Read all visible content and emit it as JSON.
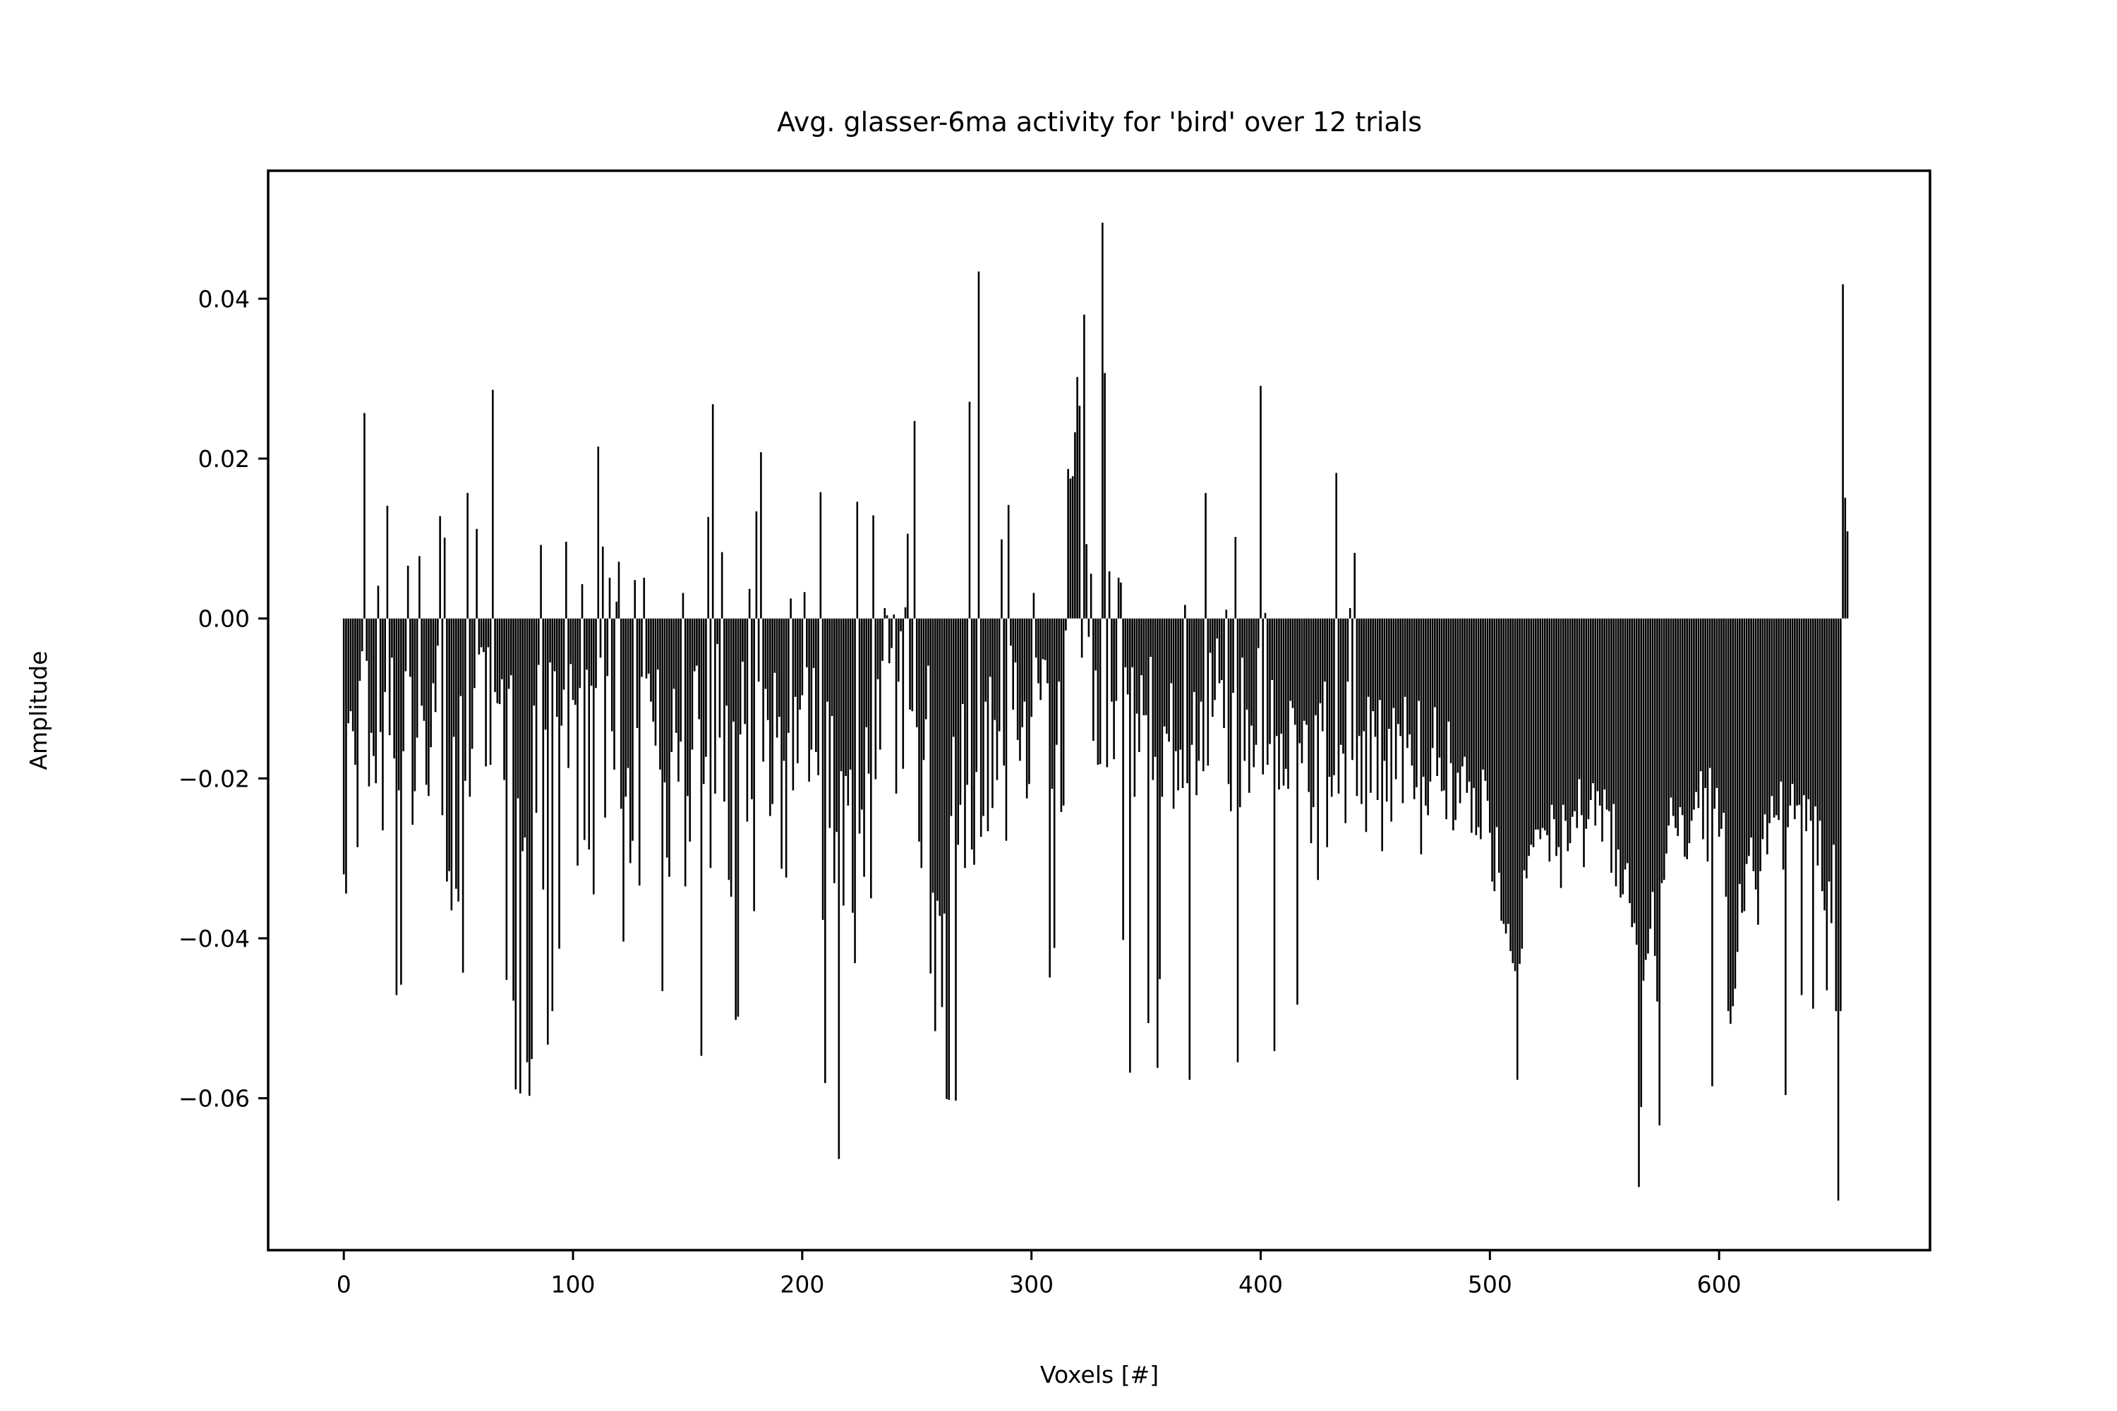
{
  "chart_data": {
    "type": "bar",
    "title": "Avg. glasser-6ma activity for 'bird' over 12 trials",
    "xlabel": "Voxels [#]",
    "ylabel": "Amplitude",
    "xlim": [
      -33,
      692
    ],
    "ylim": [
      -0.079,
      0.056
    ],
    "x_ticks": [
      0,
      100,
      200,
      300,
      400,
      500,
      600
    ],
    "x_tick_labels": [
      "0",
      "100",
      "200",
      "300",
      "400",
      "500",
      "600"
    ],
    "y_ticks": [
      -0.06,
      -0.04,
      -0.02,
      0.0,
      0.02,
      0.04
    ],
    "y_tick_labels": [
      "−0.06",
      "−0.04",
      "−0.02",
      "0.00",
      "0.02",
      "0.04"
    ],
    "grid": false,
    "bar_color": "#000000",
    "n_bars": 664,
    "x_start": 0,
    "values": [
      -0.032,
      -0.0344,
      -0.0131,
      -0.0116,
      -0.0141,
      -0.0183,
      -0.0286,
      -0.0078,
      -0.0041,
      0.0257,
      -0.0053,
      -0.021,
      -0.0143,
      -0.0172,
      -0.0206,
      0.0041,
      -0.0142,
      -0.0265,
      -0.0092,
      0.0141,
      -0.0146,
      -0.0049,
      -0.0175,
      -0.0471,
      -0.0215,
      -0.0458,
      -0.0166,
      -0.0066,
      0.0066,
      -0.0073,
      -0.0258,
      -0.0216,
      -0.0149,
      0.0078,
      -0.0109,
      -0.0128,
      -0.0208,
      -0.0222,
      -0.0161,
      -0.0081,
      -0.0117,
      -0.0034,
      0.0128,
      -0.0246,
      0.0101,
      -0.0329,
      -0.0316,
      -0.0365,
      -0.0148,
      -0.0338,
      -0.0354,
      -0.0097,
      -0.0443,
      -0.0203,
      0.0157,
      -0.0223,
      -0.0163,
      -0.0087,
      0.0112,
      -0.0045,
      -0.0036,
      -0.0042,
      -0.0185,
      -0.0036,
      -0.0183,
      0.0286,
      -0.0092,
      -0.0106,
      -0.0107,
      -0.0076,
      -0.0202,
      -0.0452,
      -0.0088,
      -0.0071,
      -0.0478,
      -0.0589,
      -0.0225,
      -0.0594,
      -0.0291,
      -0.0274,
      -0.0555,
      -0.0597,
      -0.0551,
      -0.0109,
      -0.0243,
      -0.0058,
      0.0092,
      -0.0339,
      -0.0139,
      -0.0533,
      -0.0055,
      -0.0491,
      -0.0066,
      -0.0123,
      -0.0413,
      -0.0134,
      -0.0089,
      0.0096,
      -0.0187,
      -0.0057,
      -0.0102,
      -0.0108,
      -0.0309,
      -0.0087,
      0.0043,
      -0.0277,
      -0.0064,
      -0.0289,
      -0.0084,
      -0.0345,
      -0.0087,
      0.0215,
      -0.0049,
      0.009,
      -0.0249,
      -0.0072,
      0.0051,
      -0.0141,
      -0.0189,
      0.0021,
      0.0071,
      -0.0238,
      -0.0404,
      -0.0223,
      -0.0187,
      -0.0306,
      -0.0278,
      0.0048,
      -0.0137,
      -0.0334,
      -0.0073,
      0.0051,
      -0.0075,
      -0.0069,
      -0.0104,
      -0.0129,
      -0.0159,
      -0.0064,
      -0.0189,
      -0.0466,
      -0.0205,
      -0.0299,
      -0.0323,
      -0.0167,
      -0.0088,
      -0.0143,
      -0.0204,
      -0.0154,
      0.0032,
      -0.0335,
      -0.0222,
      -0.0279,
      -0.0164,
      -0.0066,
      -0.0059,
      -0.0126,
      -0.0547,
      -0.0207,
      -0.0173,
      0.0127,
      -0.0312,
      0.0268,
      -0.0219,
      -0.0032,
      -0.0149,
      0.0083,
      -0.0229,
      -0.0109,
      -0.0327,
      -0.0348,
      -0.0129,
      -0.0502,
      -0.0498,
      -0.0145,
      -0.0054,
      -0.0132,
      -0.0254,
      0.0037,
      -0.0226,
      -0.0366,
      0.0134,
      -0.0079,
      0.0208,
      -0.0179,
      -0.0088,
      -0.0127,
      -0.0247,
      -0.0232,
      -0.0068,
      -0.0149,
      -0.0123,
      -0.0313,
      -0.0178,
      -0.0324,
      -0.0143,
      0.0025,
      -0.0215,
      -0.0098,
      -0.0181,
      -0.0114,
      -0.0096,
      0.0033,
      -0.0061,
      -0.0204,
      -0.0164,
      -0.0062,
      -0.0167,
      -0.0196,
      0.0158,
      -0.0377,
      -0.0581,
      -0.0104,
      -0.0262,
      -0.0122,
      -0.0331,
      -0.0267,
      -0.0676,
      -0.0191,
      -0.0359,
      -0.0197,
      -0.0234,
      -0.0189,
      -0.0368,
      -0.0431,
      0.0146,
      -0.0269,
      -0.0239,
      -0.0323,
      -0.0136,
      -0.0194,
      -0.035,
      0.0129,
      -0.0201,
      -0.0076,
      -0.0164,
      -0.0053,
      0.0013,
      0.0004,
      -0.0056,
      -0.0037,
      0.0005,
      -0.0219,
      -0.0079,
      -0.0016,
      -0.0188,
      0.0014,
      0.0106,
      -0.0114,
      -0.0116,
      0.0247,
      -0.0136,
      -0.0279,
      -0.0312,
      -0.0177,
      -0.0126,
      -0.0059,
      -0.0444,
      -0.0343,
      -0.0516,
      -0.0353,
      -0.0372,
      -0.0486,
      -0.0369,
      -0.0601,
      -0.0602,
      -0.0247,
      -0.0148,
      -0.0603,
      -0.0283,
      -0.0233,
      -0.0107,
      -0.0312,
      -0.0208,
      0.0271,
      -0.0289,
      -0.0308,
      -0.0192,
      0.0434,
      -0.0273,
      -0.0247,
      -0.0104,
      -0.0266,
      -0.0073,
      -0.0237,
      -0.0127,
      -0.0202,
      -0.0141,
      0.0099,
      -0.0184,
      -0.0278,
      0.0142,
      -0.0034,
      -0.0114,
      -0.0055,
      -0.0152,
      -0.0178,
      -0.0136,
      -0.0104,
      -0.0225,
      -0.0207,
      -0.0123,
      0.0032,
      -0.0049,
      -0.0081,
      -0.0102,
      -0.0051,
      -0.0052,
      -0.0081,
      -0.0449,
      -0.0213,
      -0.0412,
      -0.0158,
      -0.0079,
      -0.0242,
      -0.0234,
      -0.0015,
      0.0187,
      0.0175,
      0.0178,
      0.0233,
      0.0302,
      0.0266,
      -0.0049,
      0.038,
      0.0093,
      -0.0023,
      0.0056,
      -0.0153,
      -0.0065,
      -0.0183,
      -0.0182,
      0.0495,
      0.0307,
      -0.0186,
      0.0059,
      -0.0104,
      -0.0176,
      -0.0103,
      0.0051,
      0.0045,
      -0.0402,
      -0.0061,
      -0.0095,
      -0.0568,
      -0.0061,
      -0.0223,
      -0.0119,
      -0.0167,
      -0.0071,
      -0.0121,
      -0.0121,
      -0.0506,
      -0.0048,
      -0.0202,
      -0.0173,
      -0.0562,
      -0.0451,
      -0.0223,
      -0.0135,
      -0.0144,
      -0.0154,
      -0.0081,
      -0.0238,
      -0.0166,
      -0.0215,
      -0.0164,
      -0.0212,
      0.0017,
      -0.0206,
      -0.0577,
      -0.0158,
      -0.0092,
      -0.0221,
      -0.0178,
      -0.0104,
      -0.0191,
      0.0157,
      -0.0184,
      -0.0043,
      -0.0123,
      -0.0102,
      -0.0025,
      -0.0081,
      -0.0077,
      -0.0137,
      0.0011,
      -0.0207,
      -0.0241,
      -0.0093,
      0.0102,
      -0.0555,
      -0.0236,
      -0.0049,
      -0.0178,
      -0.0114,
      -0.0218,
      -0.0134,
      -0.0186,
      -0.0158,
      -0.0037,
      0.0291,
      -0.0195,
      0.0007,
      -0.0183,
      -0.0157,
      -0.0077,
      -0.0541,
      -0.0147,
      -0.0214,
      -0.0144,
      -0.0209,
      -0.0188,
      -0.0213,
      -0.0103,
      -0.0112,
      -0.0133,
      -0.0483,
      -0.0156,
      -0.0181,
      -0.0128,
      -0.0133,
      -0.0217,
      -0.0281,
      -0.0236,
      -0.0121,
      -0.0327,
      -0.0106,
      -0.0141,
      -0.0079,
      -0.0286,
      -0.0198,
      -0.0223,
      -0.0196,
      0.0182,
      -0.0219,
      -0.0158,
      -0.0169,
      -0.0256,
      -0.0079,
      0.0013,
      -0.0177,
      0.0082,
      -0.0222,
      -0.0147,
      -0.0232,
      -0.0141,
      -0.0267,
      -0.0098,
      -0.0218,
      -0.0116,
      -0.0148,
      -0.0227,
      -0.0102,
      -0.0291,
      -0.0178,
      -0.0229,
      -0.0138,
      -0.0254,
      -0.0112,
      -0.0201,
      -0.0132,
      -0.0147,
      -0.0231,
      -0.0098,
      -0.0162,
      -0.0145,
      -0.0184,
      -0.0226,
      -0.0211,
      -0.0103,
      -0.0295,
      -0.0198,
      -0.0234,
      -0.0246,
      -0.0204,
      -0.0162,
      -0.0111,
      -0.0197,
      -0.0174,
      -0.0216,
      -0.0215,
      -0.0251,
      -0.0129,
      -0.0181,
      -0.0265,
      -0.0252,
      -0.0193,
      -0.0231,
      -0.0185,
      -0.0173,
      -0.0218,
      -0.0204,
      -0.0268,
      -0.0212,
      -0.0271,
      -0.0261,
      -0.0276,
      -0.0189,
      -0.0203,
      -0.0228,
      -0.0268,
      -0.0329,
      -0.0341,
      -0.0261,
      -0.0318,
      -0.0378,
      -0.0382,
      -0.0394,
      -0.0382,
      -0.0416,
      -0.0431,
      -0.0441,
      -0.0577,
      -0.0432,
      -0.0413,
      -0.0315,
      -0.0325,
      -0.0297,
      -0.0283,
      -0.0286,
      -0.0264,
      -0.0264,
      -0.0276,
      -0.0262,
      -0.0265,
      -0.0271,
      -0.0304,
      -0.0233,
      -0.0251,
      -0.0297,
      -0.0286,
      -0.0337,
      -0.0233,
      -0.0253,
      -0.0291,
      -0.0281,
      -0.0248,
      -0.0241,
      -0.0262,
      -0.0201,
      -0.0246,
      -0.0311,
      -0.0263,
      -0.0251,
      -0.0227,
      -0.0206,
      -0.0259,
      -0.0216,
      -0.0234,
      -0.0279,
      -0.0214,
      -0.0239,
      -0.0241,
      -0.0318,
      -0.0232,
      -0.0335,
      -0.0289,
      -0.0349,
      -0.0345,
      -0.0314,
      -0.0306,
      -0.0356,
      -0.0386,
      -0.0381,
      -0.0408,
      -0.0711,
      -0.0611,
      -0.0453,
      -0.0427,
      -0.0419,
      -0.0388,
      -0.0342,
      -0.0422,
      -0.0479,
      -0.0634,
      -0.0331,
      -0.0327,
      -0.0294,
      -0.0259,
      -0.0224,
      -0.0247,
      -0.0262,
      -0.0272,
      -0.0236,
      -0.0246,
      -0.0298,
      -0.0301,
      -0.0281,
      -0.0253,
      -0.0239,
      -0.0217,
      -0.0237,
      -0.0191,
      -0.0276,
      -0.0212,
      -0.0304,
      -0.0187,
      -0.0585,
      -0.0238,
      -0.0212,
      -0.0273,
      -0.0263,
      -0.0243,
      -0.0348,
      -0.0491,
      -0.0507,
      -0.0485,
      -0.0463,
      -0.0417,
      -0.0332,
      -0.0368,
      -0.0366,
      -0.0307,
      -0.0297,
      -0.0274,
      -0.0316,
      -0.0339,
      -0.0383,
      -0.0316,
      -0.0276,
      -0.0245,
      -0.0295,
      -0.0256,
      -0.0222,
      -0.0249,
      -0.0246,
      -0.0252,
      -0.0204,
      -0.0314,
      -0.0596,
      -0.0261,
      -0.0234,
      -0.0207,
      -0.0251,
      -0.0234,
      -0.0233,
      -0.0471,
      -0.0221,
      -0.0266,
      -0.0226,
      -0.0253,
      -0.0488,
      -0.0235,
      -0.0309,
      -0.0253,
      -0.0341,
      -0.0365,
      -0.0465,
      -0.0329,
      -0.0381,
      -0.0283,
      -0.0491,
      -0.0728,
      -0.0491,
      0.0418,
      0.0151,
      0.0109
    ]
  }
}
